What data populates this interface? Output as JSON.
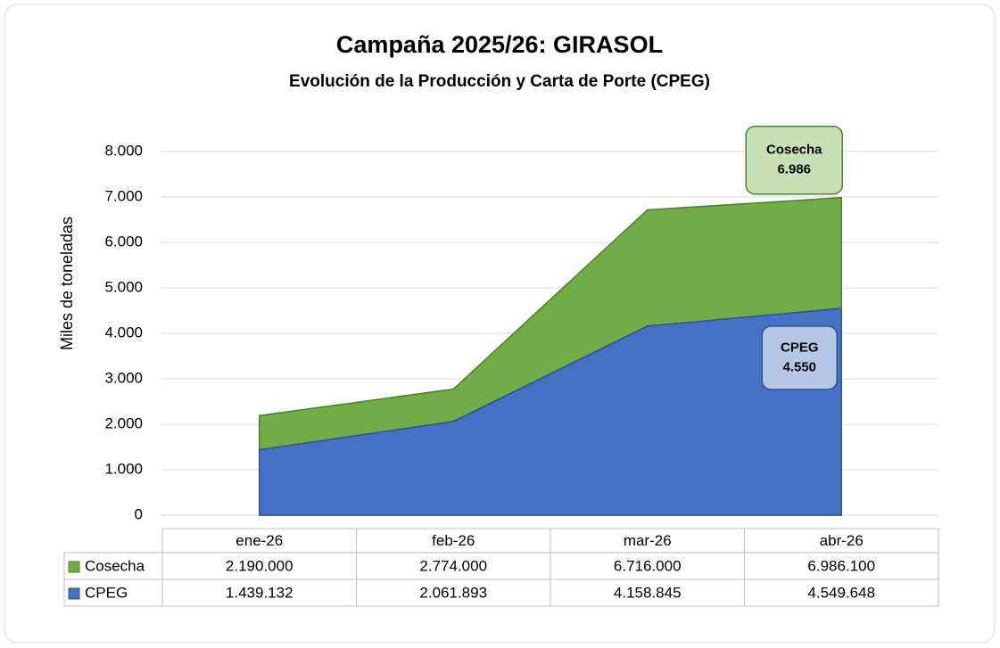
{
  "chart_data": {
    "type": "area",
    "title": "Campaña 2025/26: GIRASOL",
    "subtitle": "Evolución de la Producción y Carta de Porte (CPEG)",
    "ylabel": "Miles de toneladas",
    "categories": [
      "ene-26",
      "feb-26",
      "mar-26",
      "abr-26"
    ],
    "series": [
      {
        "name": "Cosecha",
        "color": "#70ad47",
        "values": [
          2190,
          2774,
          6716,
          6986.1
        ],
        "value_labels": [
          "2.190.000",
          "2.774.000",
          "6.716.000",
          "6.986.100"
        ]
      },
      {
        "name": "CPEG",
        "color": "#4472c4",
        "values": [
          1439.132,
          2061.893,
          4158.845,
          4549.648
        ],
        "value_labels": [
          "1.439.132",
          "2.061.893",
          "4.158.845",
          "4.549.648"
        ]
      }
    ],
    "annotations": [
      {
        "text": [
          "Cosecha",
          "6.986"
        ]
      },
      {
        "text": [
          "CPEG",
          "4.550"
        ]
      }
    ],
    "ylim": [
      0,
      8000
    ],
    "yticks": [
      0,
      {
        "value": 1000,
        "label": "1.000"
      },
      {
        "value": 2000,
        "label": "2.000"
      },
      {
        "value": 3000,
        "label": "3.000"
      },
      {
        "value": 4000,
        "label": "4.000"
      },
      {
        "value": 5000,
        "label": "5.000"
      },
      {
        "value": 6000,
        "label": "6.000"
      },
      {
        "value": 7000,
        "label": "7.000"
      },
      {
        "value": 8000,
        "label": "8.000"
      }
    ],
    "grid": true
  }
}
